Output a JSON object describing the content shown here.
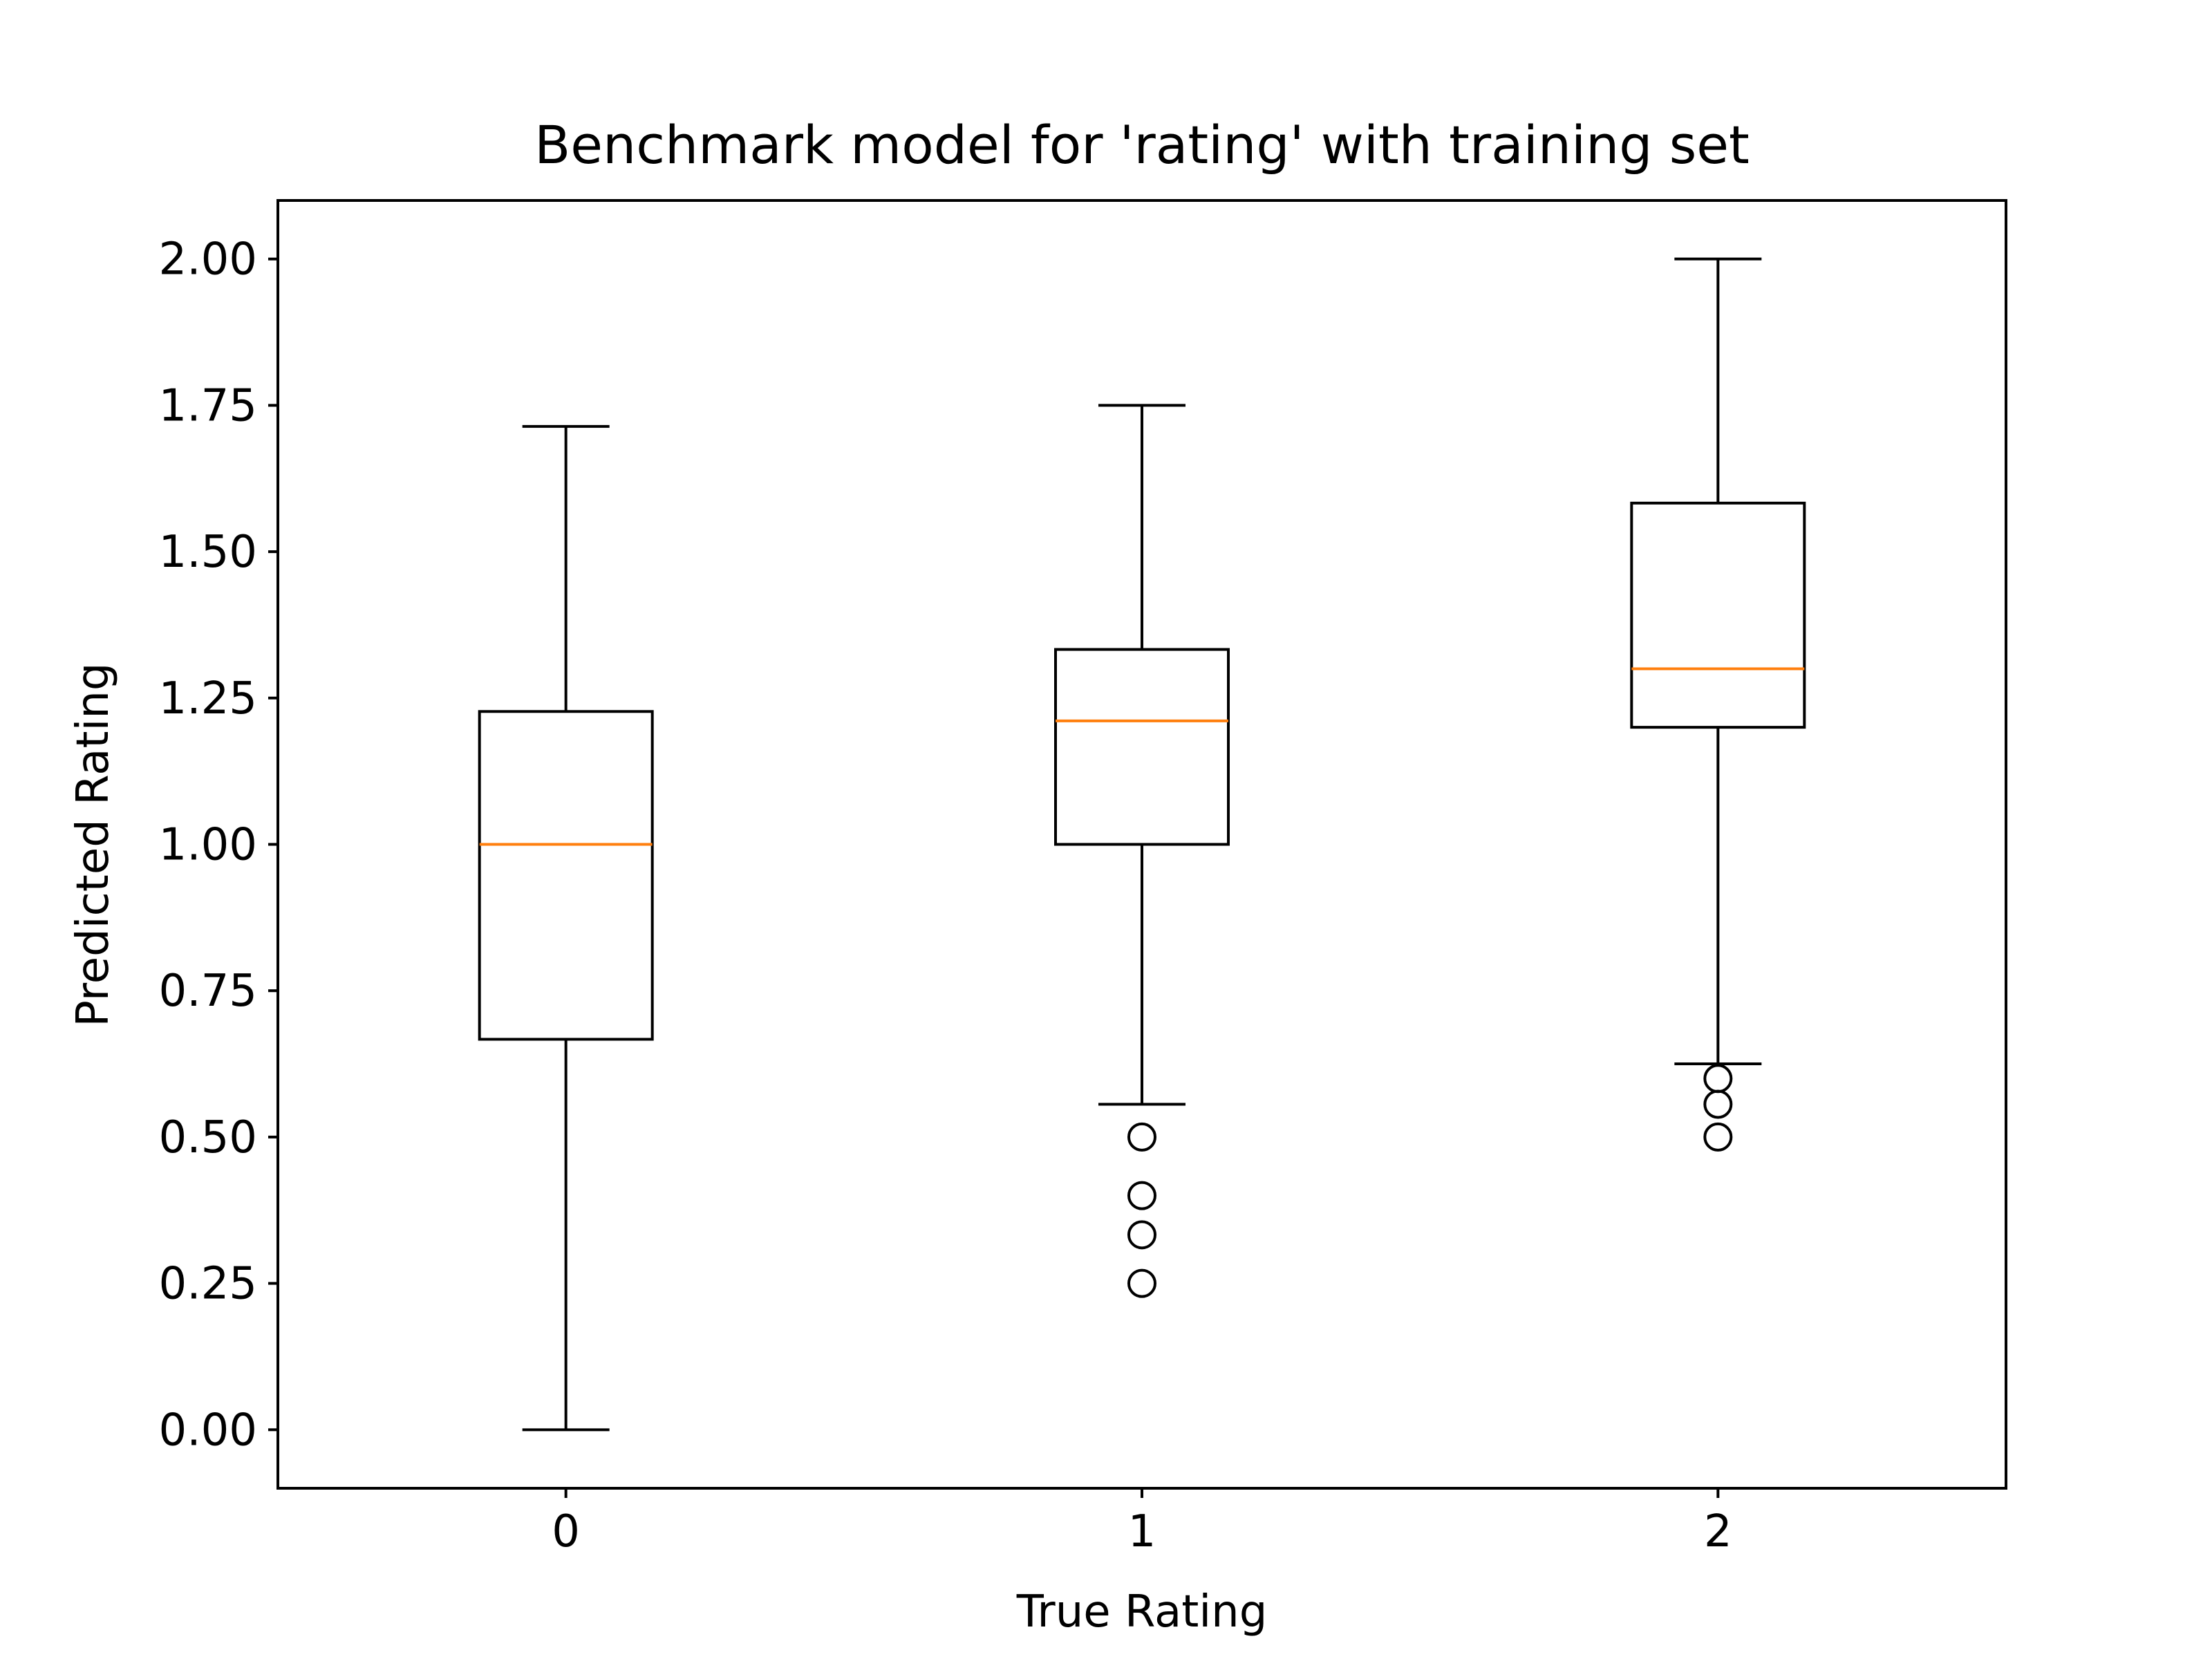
{
  "chart_data": {
    "type": "box",
    "title": "Benchmark model for 'rating' with training set",
    "xlabel": "True Rating",
    "ylabel": "Predicted Rating",
    "ylim": [
      -0.1,
      2.1
    ],
    "yticks": [
      0.0,
      0.25,
      0.5,
      0.75,
      1.0,
      1.25,
      1.5,
      1.75,
      2.0
    ],
    "ytick_labels": [
      "0.00",
      "0.25",
      "0.50",
      "0.75",
      "1.00",
      "1.25",
      "1.50",
      "1.75",
      "2.00"
    ],
    "categories": [
      "0",
      "1",
      "2"
    ],
    "boxes": [
      {
        "category": "0",
        "whisker_low": 0.0,
        "q1": 0.667,
        "median": 1.0,
        "q3": 1.227,
        "whisker_high": 1.714,
        "outliers": []
      },
      {
        "category": "1",
        "whisker_low": 0.556,
        "q1": 1.0,
        "median": 1.211,
        "q3": 1.333,
        "whisker_high": 1.75,
        "outliers": [
          0.5,
          0.4,
          0.333,
          0.25
        ]
      },
      {
        "category": "2",
        "whisker_low": 0.625,
        "q1": 1.2,
        "median": 1.3,
        "q3": 1.583,
        "whisker_high": 2.0,
        "outliers": [
          0.6,
          0.556,
          0.5
        ]
      }
    ],
    "grid": false,
    "colors": {
      "box": "#000000",
      "median": "#ff7f0e",
      "outlier": "#000000",
      "background": "#ffffff"
    }
  }
}
